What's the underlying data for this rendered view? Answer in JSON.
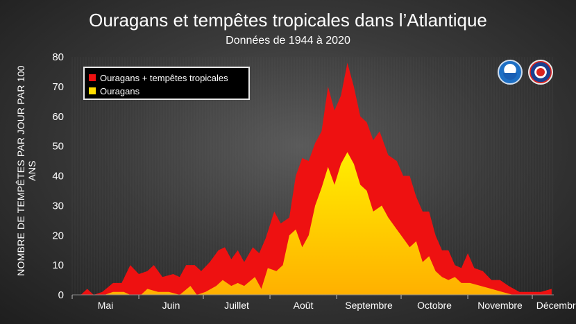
{
  "header": {
    "title": "Ouragans et tempêtes tropicales dans l’Atlantique",
    "subtitle": "Données de 1944 à 2020"
  },
  "logos": [
    "NOAA",
    "National Weather Service"
  ],
  "colors": {
    "total": "#ee1111",
    "hurricanes": "#ffdd00",
    "background": "#333333"
  },
  "chart_data": {
    "type": "area",
    "ylabel": "NOMBRE DE TEMPÊTES PAR JOUR PAR 100 ANS",
    "ylim": [
      0,
      80
    ],
    "yticks": [
      0,
      10,
      20,
      30,
      40,
      50,
      60,
      70,
      80
    ],
    "xlabel": "",
    "x_months": [
      "Mai",
      "Juin",
      "Juillet",
      "Août",
      "Septembre",
      "Octobre",
      "Novembre",
      "Décembre"
    ],
    "legend_position": "top-left",
    "series": [
      {
        "name": "Ouragans + tempêtes tropicales",
        "color": "#ee1111",
        "points": [
          [
            "05-01",
            0
          ],
          [
            "05-05",
            0
          ],
          [
            "05-08",
            2
          ],
          [
            "05-11",
            0
          ],
          [
            "05-15",
            1
          ],
          [
            "05-20",
            4
          ],
          [
            "05-24",
            4
          ],
          [
            "05-28",
            10
          ],
          [
            "06-01",
            7
          ],
          [
            "06-05",
            8
          ],
          [
            "06-08",
            10
          ],
          [
            "06-12",
            6
          ],
          [
            "06-17",
            7
          ],
          [
            "06-20",
            6
          ],
          [
            "06-23",
            10
          ],
          [
            "06-27",
            10
          ],
          [
            "06-30",
            8
          ],
          [
            "07-04",
            11
          ],
          [
            "07-08",
            15
          ],
          [
            "07-11",
            16
          ],
          [
            "07-14",
            12
          ],
          [
            "07-17",
            15
          ],
          [
            "07-20",
            11
          ],
          [
            "07-24",
            16
          ],
          [
            "07-27",
            14
          ],
          [
            "07-30",
            19
          ],
          [
            "08-03",
            28
          ],
          [
            "08-06",
            24
          ],
          [
            "08-10",
            26
          ],
          [
            "08-13",
            40
          ],
          [
            "08-16",
            46
          ],
          [
            "08-19",
            45
          ],
          [
            "08-22",
            51
          ],
          [
            "08-25",
            55
          ],
          [
            "08-28",
            70
          ],
          [
            "08-31",
            62
          ],
          [
            "09-03",
            67
          ],
          [
            "09-06",
            78
          ],
          [
            "09-09",
            70
          ],
          [
            "09-12",
            60
          ],
          [
            "09-15",
            58
          ],
          [
            "09-18",
            52
          ],
          [
            "09-21",
            55
          ],
          [
            "09-25",
            47
          ],
          [
            "09-29",
            45
          ],
          [
            "10-02",
            40
          ],
          [
            "10-05",
            40
          ],
          [
            "10-08",
            33
          ],
          [
            "10-11",
            28
          ],
          [
            "10-14",
            28
          ],
          [
            "10-17",
            20
          ],
          [
            "10-20",
            15
          ],
          [
            "10-23",
            15
          ],
          [
            "10-26",
            10
          ],
          [
            "10-29",
            9
          ],
          [
            "11-01",
            14
          ],
          [
            "11-04",
            9
          ],
          [
            "11-08",
            8
          ],
          [
            "11-12",
            5
          ],
          [
            "11-16",
            5
          ],
          [
            "11-20",
            3
          ],
          [
            "11-25",
            1
          ],
          [
            "11-30",
            1
          ],
          [
            "12-05",
            1
          ],
          [
            "12-10",
            2
          ]
        ]
      },
      {
        "name": "Ouragans",
        "color": "#ffdd00",
        "points": [
          [
            "05-01",
            0
          ],
          [
            "05-12",
            0
          ],
          [
            "05-16",
            0
          ],
          [
            "05-20",
            1
          ],
          [
            "05-25",
            1
          ],
          [
            "05-28",
            0
          ],
          [
            "06-02",
            0
          ],
          [
            "06-05",
            2
          ],
          [
            "06-10",
            1
          ],
          [
            "06-15",
            1
          ],
          [
            "06-20",
            0
          ],
          [
            "06-25",
            3
          ],
          [
            "06-28",
            0
          ],
          [
            "07-02",
            1
          ],
          [
            "07-07",
            3
          ],
          [
            "07-10",
            5
          ],
          [
            "07-14",
            3
          ],
          [
            "07-17",
            4
          ],
          [
            "07-20",
            3
          ],
          [
            "07-25",
            6
          ],
          [
            "07-28",
            2
          ],
          [
            "07-31",
            9
          ],
          [
            "08-04",
            8
          ],
          [
            "08-07",
            10
          ],
          [
            "08-10",
            20
          ],
          [
            "08-13",
            22
          ],
          [
            "08-16",
            16
          ],
          [
            "08-19",
            20
          ],
          [
            "08-22",
            30
          ],
          [
            "08-25",
            36
          ],
          [
            "08-28",
            43
          ],
          [
            "08-31",
            37
          ],
          [
            "09-03",
            44
          ],
          [
            "09-06",
            48
          ],
          [
            "09-09",
            44
          ],
          [
            "09-12",
            37
          ],
          [
            "09-15",
            35
          ],
          [
            "09-18",
            28
          ],
          [
            "09-22",
            30
          ],
          [
            "09-25",
            26
          ],
          [
            "09-29",
            22
          ],
          [
            "10-02",
            19
          ],
          [
            "10-05",
            16
          ],
          [
            "10-08",
            18
          ],
          [
            "10-11",
            11
          ],
          [
            "10-14",
            13
          ],
          [
            "10-17",
            8
          ],
          [
            "10-20",
            6
          ],
          [
            "10-23",
            5
          ],
          [
            "10-26",
            6
          ],
          [
            "10-29",
            4
          ],
          [
            "11-02",
            4
          ],
          [
            "11-07",
            3
          ],
          [
            "11-12",
            2
          ],
          [
            "11-17",
            1
          ],
          [
            "11-22",
            0
          ],
          [
            "12-05",
            0
          ],
          [
            "12-10",
            0
          ]
        ]
      }
    ]
  }
}
